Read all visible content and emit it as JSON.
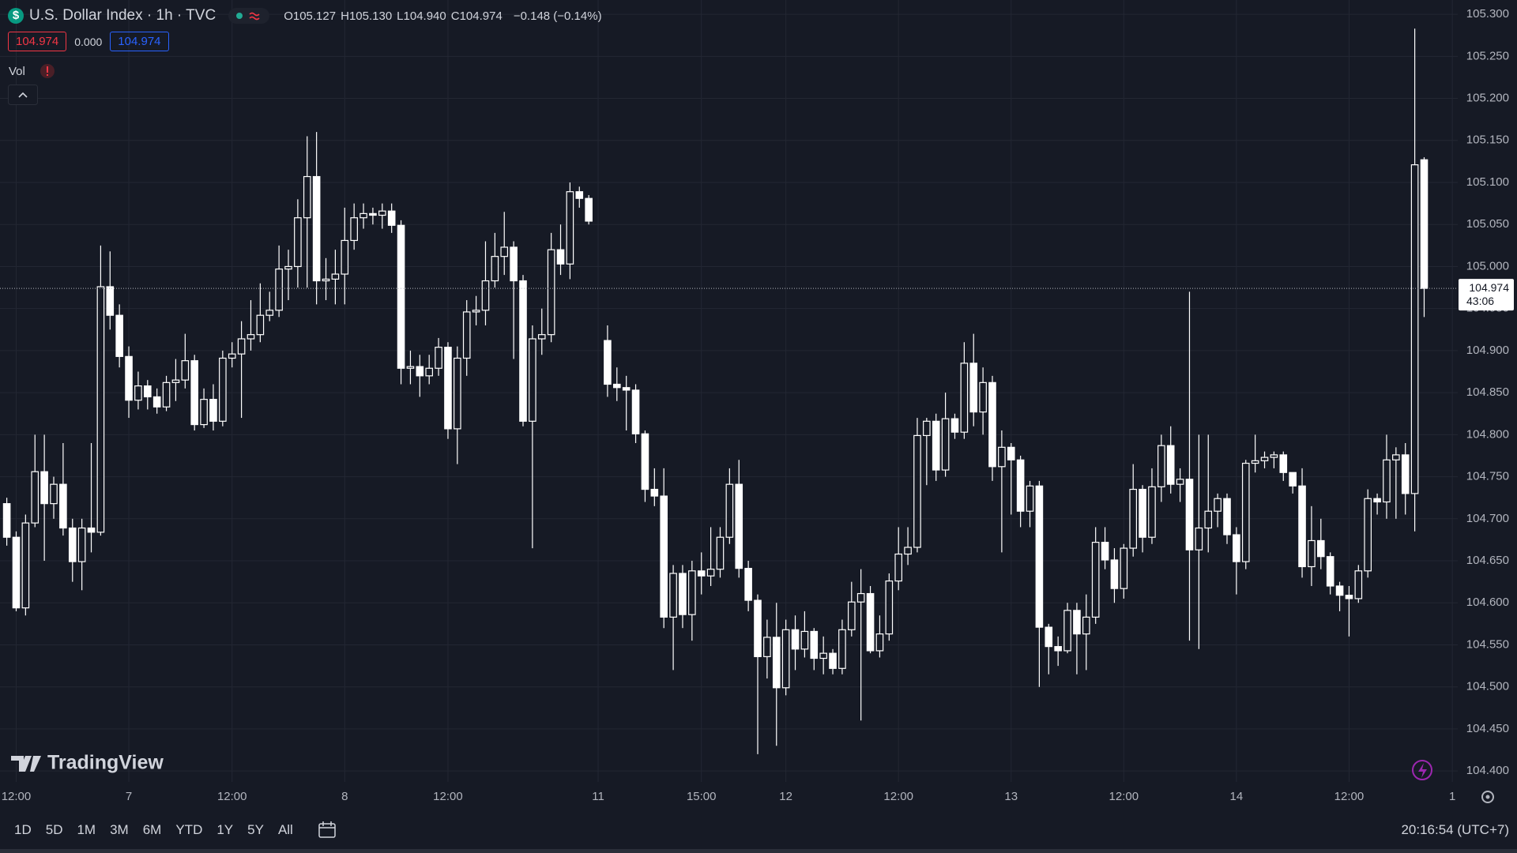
{
  "header": {
    "icon": "$",
    "symbol": "U.S. Dollar Index · 1h · TVC",
    "ohlc": [
      {
        "label": "O",
        "value": "105.127"
      },
      {
        "label": "H",
        "value": "105.130"
      },
      {
        "label": "L",
        "value": "104.940"
      },
      {
        "label": "C",
        "value": "104.974"
      }
    ],
    "change": "−0.148 (−0.14%)",
    "sell": "104.974",
    "spread": "0.000",
    "buy": "104.974",
    "volume_label": "Vol"
  },
  "chart_data": {
    "type": "candlestick",
    "categories": [
      null,
      "12:00",
      null,
      null,
      null,
      null,
      null,
      null,
      null,
      null,
      null,
      null,
      null,
      "7",
      null,
      null,
      null,
      null,
      null,
      null,
      null,
      null,
      null,
      null,
      "12:00",
      null,
      null,
      null,
      null,
      null,
      null,
      null,
      null,
      null,
      null,
      null,
      "8",
      null,
      null,
      null,
      null,
      null,
      null,
      null,
      null,
      null,
      null,
      "12:00",
      null,
      null,
      null,
      null,
      null,
      null,
      null,
      null,
      null,
      null,
      null,
      null,
      null,
      null,
      null,
      "11",
      null,
      null,
      null,
      null,
      null,
      null,
      null,
      null,
      null,
      null,
      "15:00",
      null,
      null,
      null,
      null,
      null,
      null,
      null,
      null,
      "12",
      null,
      null,
      null,
      null,
      null,
      null,
      null,
      null,
      null,
      null,
      null,
      "12:00",
      null,
      null,
      null,
      null,
      null,
      null,
      null,
      null,
      null,
      null,
      null,
      "13",
      null,
      null,
      null,
      null,
      null,
      null,
      null,
      null,
      null,
      null,
      null,
      "12:00",
      null,
      null,
      null,
      null,
      null,
      null,
      null,
      null,
      null,
      null,
      null,
      "14",
      null,
      null,
      null,
      null,
      null,
      null,
      null,
      null,
      null,
      null,
      null,
      "12:00",
      null,
      null,
      null,
      null,
      null,
      null,
      null,
      null,
      null,
      null,
      "1"
    ],
    "open": [
      104.718,
      104.678,
      104.594,
      104.695,
      104.756,
      104.718,
      104.741,
      104.689,
      104.649,
      104.689,
      104.684,
      104.976,
      104.942,
      104.893,
      104.841,
      104.858,
      104.845,
      104.833,
      104.862,
      104.865,
      104.888,
      104.812,
      104.842,
      104.816,
      104.891,
      104.896,
      104.914,
      104.919,
      104.942,
      104.948,
      104.997,
      105.0,
      105.058,
      105.107,
      104.983,
      104.985,
      104.991,
      105.031,
      105.058,
      105.063,
      105.061,
      105.066,
      105.049,
      104.879,
      104.881,
      104.87,
      104.879,
      104.904,
      104.807,
      104.891,
      104.946,
      104.948,
      104.983,
      105.012,
      105.023,
      104.983,
      104.816,
      104.914,
      104.919,
      105.02,
      105.003,
      105.089,
      105.081,
      null,
      104.912,
      104.86,
      104.856,
      104.853,
      104.801,
      104.735,
      104.727,
      104.583,
      104.635,
      104.586,
      104.638,
      104.632,
      104.64,
      104.678,
      104.741,
      104.641,
      104.603,
      104.536,
      104.559,
      104.499,
      104.568,
      104.545,
      104.566,
      104.534,
      104.54,
      104.522,
      104.568,
      104.601,
      104.611,
      104.543,
      104.563,
      104.626,
      104.658,
      104.666,
      104.799,
      104.816,
      104.758,
      104.819,
      104.803,
      104.885,
      104.827,
      104.862,
      104.762,
      104.785,
      104.77,
      104.709,
      104.739,
      104.571,
      104.548,
      104.543,
      104.591,
      104.563,
      104.583,
      104.672,
      104.651,
      104.617,
      104.665,
      104.735,
      104.678,
      104.738,
      104.787,
      104.741,
      104.747,
      104.663,
      104.689,
      104.709,
      104.724,
      104.681,
      104.649,
      104.766,
      104.769,
      104.773,
      104.776,
      104.755,
      104.739,
      104.643,
      104.674,
      104.655,
      104.62,
      104.609,
      104.605,
      104.638,
      104.724,
      104.72,
      104.77,
      104.776,
      104.73,
      105.127,
      null,
      null,
      null
    ],
    "high": [
      104.725,
      104.685,
      104.705,
      104.8,
      104.8,
      104.75,
      104.79,
      104.7,
      104.7,
      104.79,
      105.025,
      105.018,
      104.955,
      104.905,
      104.875,
      104.865,
      104.855,
      104.87,
      104.89,
      104.92,
      104.895,
      104.855,
      104.86,
      104.9,
      104.91,
      104.935,
      104.96,
      104.98,
      104.97,
      105.025,
      105.02,
      105.08,
      105.155,
      105.16,
      105.01,
      105.02,
      105.07,
      105.075,
      105.075,
      105.07,
      105.075,
      105.075,
      105.055,
      104.9,
      104.895,
      104.895,
      104.915,
      104.91,
      104.905,
      104.96,
      104.965,
      105.03,
      105.04,
      105.065,
      105.03,
      104.99,
      104.93,
      104.95,
      105.04,
      105.05,
      105.1,
      105.095,
      105.085,
      null,
      104.93,
      104.88,
      104.87,
      104.86,
      104.805,
      104.76,
      104.76,
      104.645,
      104.645,
      104.65,
      104.66,
      104.69,
      104.69,
      104.76,
      104.77,
      104.65,
      104.61,
      104.58,
      104.6,
      104.58,
      104.585,
      104.59,
      104.57,
      104.56,
      104.545,
      104.58,
      104.625,
      104.64,
      104.62,
      104.585,
      104.635,
      104.69,
      104.69,
      104.82,
      104.82,
      104.825,
      104.85,
      104.825,
      104.91,
      104.92,
      104.88,
      104.87,
      104.805,
      104.79,
      104.775,
      104.745,
      104.745,
      104.575,
      104.56,
      104.6,
      104.6,
      104.61,
      104.69,
      104.69,
      104.665,
      104.67,
      104.765,
      104.74,
      104.76,
      104.8,
      104.81,
      104.76,
      104.97,
      104.8,
      104.8,
      104.73,
      104.73,
      104.69,
      104.77,
      104.8,
      104.78,
      104.78,
      104.78,
      104.755,
      104.76,
      104.715,
      104.7,
      104.66,
      104.625,
      104.62,
      104.645,
      104.735,
      104.73,
      104.8,
      104.785,
      104.79,
      105.283,
      105.13,
      null,
      null,
      null
    ],
    "low": [
      104.668,
      104.59,
      104.585,
      104.69,
      104.65,
      104.7,
      104.68,
      104.625,
      104.615,
      104.66,
      104.68,
      104.925,
      104.88,
      104.82,
      104.83,
      104.83,
      104.825,
      104.828,
      104.84,
      104.855,
      104.805,
      104.808,
      104.805,
      104.81,
      104.88,
      104.82,
      104.9,
      104.91,
      104.935,
      104.94,
      104.96,
      104.975,
      104.975,
      104.955,
      104.96,
      104.955,
      104.955,
      105.02,
      105.045,
      105.05,
      105.045,
      105.04,
      104.86,
      104.86,
      104.845,
      104.86,
      104.87,
      104.795,
      104.765,
      104.87,
      104.93,
      104.93,
      104.975,
      104.99,
      104.89,
      104.81,
      104.665,
      104.895,
      104.91,
      104.99,
      104.985,
      105.07,
      105.05,
      null,
      104.845,
      104.84,
      104.805,
      104.79,
      104.72,
      104.715,
      104.57,
      104.52,
      104.57,
      104.555,
      104.61,
      104.62,
      104.63,
      104.67,
      104.63,
      104.59,
      104.42,
      104.51,
      104.43,
      104.49,
      104.52,
      104.535,
      104.52,
      104.515,
      104.515,
      104.515,
      104.56,
      104.46,
      104.54,
      104.535,
      104.555,
      104.615,
      104.645,
      104.66,
      104.74,
      104.745,
      104.75,
      104.795,
      104.795,
      104.81,
      104.8,
      104.745,
      104.66,
      104.705,
      104.69,
      104.69,
      104.5,
      104.515,
      104.525,
      104.54,
      104.515,
      104.52,
      104.575,
      104.64,
      104.6,
      104.605,
      104.655,
      104.66,
      104.67,
      104.72,
      104.73,
      104.72,
      104.555,
      104.545,
      104.66,
      104.69,
      104.67,
      104.61,
      104.64,
      104.755,
      104.76,
      104.76,
      104.745,
      104.73,
      104.63,
      104.62,
      104.64,
      104.61,
      104.59,
      104.56,
      104.6,
      104.63,
      104.705,
      104.7,
      104.7,
      104.705,
      104.685,
      104.94,
      null,
      null,
      null
    ],
    "close": [
      104.678,
      104.594,
      104.695,
      104.756,
      104.718,
      104.741,
      104.689,
      104.649,
      104.689,
      104.684,
      104.976,
      104.942,
      104.893,
      104.841,
      104.858,
      104.845,
      104.833,
      104.862,
      104.865,
      104.888,
      104.812,
      104.842,
      104.816,
      104.891,
      104.896,
      104.914,
      104.919,
      104.942,
      104.948,
      104.997,
      105.0,
      105.058,
      105.107,
      104.983,
      104.985,
      104.991,
      105.031,
      105.058,
      105.063,
      105.061,
      105.066,
      105.049,
      104.879,
      104.881,
      104.87,
      104.879,
      104.904,
      104.807,
      104.891,
      104.946,
      104.948,
      104.983,
      105.012,
      105.023,
      104.983,
      104.816,
      104.914,
      104.919,
      105.02,
      105.003,
      105.089,
      105.081,
      105.054,
      null,
      104.86,
      104.856,
      104.853,
      104.801,
      104.735,
      104.727,
      104.583,
      104.635,
      104.586,
      104.638,
      104.632,
      104.64,
      104.678,
      104.741,
      104.641,
      104.603,
      104.536,
      104.559,
      104.499,
      104.568,
      104.545,
      104.566,
      104.534,
      104.54,
      104.522,
      104.568,
      104.601,
      104.611,
      104.543,
      104.563,
      104.626,
      104.658,
      104.666,
      104.799,
      104.816,
      104.758,
      104.819,
      104.803,
      104.885,
      104.827,
      104.862,
      104.762,
      104.785,
      104.77,
      104.709,
      104.739,
      104.571,
      104.548,
      104.543,
      104.591,
      104.563,
      104.583,
      104.672,
      104.651,
      104.617,
      104.665,
      104.735,
      104.678,
      104.738,
      104.787,
      104.741,
      104.747,
      104.663,
      104.689,
      104.709,
      104.724,
      104.681,
      104.649,
      104.766,
      104.769,
      104.773,
      104.776,
      104.755,
      104.739,
      104.643,
      104.674,
      104.655,
      104.62,
      104.609,
      104.605,
      104.638,
      104.724,
      104.72,
      104.77,
      104.776,
      104.73,
      105.121,
      104.974,
      null,
      null,
      null
    ],
    "up_color": "#ffffff",
    "down_color": "#ffffff",
    "background": "#161a25",
    "ylim": [
      104.387,
      105.317
    ],
    "yticks": [
      {
        "value": 104.4,
        "label": "104.400"
      },
      {
        "value": 104.45,
        "label": "104.450"
      },
      {
        "value": 104.5,
        "label": "104.500"
      },
      {
        "value": 104.55,
        "label": "104.550"
      },
      {
        "value": 104.6,
        "label": "104.600"
      },
      {
        "value": 104.65,
        "label": "104.650"
      },
      {
        "value": 104.7,
        "label": "104.700"
      },
      {
        "value": 104.75,
        "label": "104.750"
      },
      {
        "value": 104.8,
        "label": "104.800"
      },
      {
        "value": 104.85,
        "label": "104.850"
      },
      {
        "value": 104.9,
        "label": "104.900"
      },
      {
        "value": 104.95,
        "label": "104.950"
      },
      {
        "value": 105.0,
        "label": "105.000"
      },
      {
        "value": 105.05,
        "label": "105.050"
      },
      {
        "value": 105.1,
        "label": "105.100"
      },
      {
        "value": 105.15,
        "label": "105.150"
      },
      {
        "value": 105.2,
        "label": "105.200"
      },
      {
        "value": 105.25,
        "label": "105.250"
      },
      {
        "value": 105.3,
        "label": "105.300"
      }
    ],
    "grid": true,
    "last_price_countdown": "43:06"
  },
  "watermark": "TradingView",
  "toolbar": {
    "ranges": [
      "1D",
      "5D",
      "1M",
      "3M",
      "6M",
      "YTD",
      "1Y",
      "5Y",
      "All"
    ],
    "clock": "20:16:54 (UTC+7)"
  }
}
